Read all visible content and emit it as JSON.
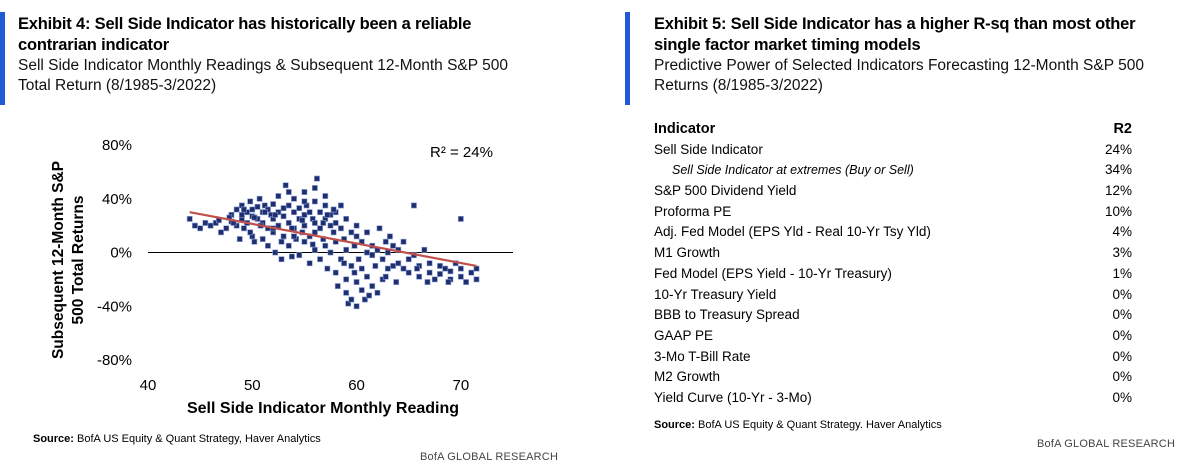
{
  "left": {
    "title": "Exhibit 4: Sell Side Indicator has historically been a reliable contrarian indicator",
    "title_line1": "Exhibit 4: Sell Side Indicator has historically been a reliable",
    "title_line2": "contrarian indicator",
    "subtitle_line1": "Sell Side Indicator Monthly Readings & Subsequent 12-Month S&P 500",
    "subtitle_line2": "Total Return (8/1985-3/2022)",
    "source_label": "Source:",
    "source_text": "BofA US Equity & Quant Strategy, Haver Analytics",
    "brand": "BofA GLOBAL RESEARCH",
    "accent_color": "#1f5bd6"
  },
  "chart_data": {
    "type": "scatter",
    "xlabel": "Sell Side Indicator Monthly Reading",
    "ylabel_line1": "Subsequent 12-Month S&P",
    "ylabel_line2": "500 Total Returns",
    "xlim": [
      40,
      75
    ],
    "ylim": [
      -80,
      80
    ],
    "x_ticks": [
      40,
      50,
      60,
      70
    ],
    "y_ticks": [
      -80,
      -40,
      0,
      40,
      80
    ],
    "y_tick_labels": [
      "-80%",
      "-40%",
      "0%",
      "40%",
      "80%"
    ],
    "annotation": "R² = 24%",
    "marker_color": "#1f2f6e",
    "trendline_color": "#c0504d",
    "trendline": [
      [
        44,
        30
      ],
      [
        71.5,
        -10
      ]
    ],
    "points": [
      [
        44,
        25
      ],
      [
        44.5,
        20
      ],
      [
        45,
        18
      ],
      [
        45.5,
        22
      ],
      [
        46,
        20
      ],
      [
        46.5,
        22
      ],
      [
        47,
        15
      ],
      [
        47.5,
        18
      ],
      [
        48,
        23
      ],
      [
        48,
        28
      ],
      [
        48.5,
        20
      ],
      [
        48.5,
        32
      ],
      [
        49,
        25
      ],
      [
        49,
        35
      ],
      [
        49,
        28
      ],
      [
        49.2,
        18
      ],
      [
        49.5,
        22
      ],
      [
        49.5,
        30
      ],
      [
        49.8,
        38
      ],
      [
        50,
        27
      ],
      [
        50,
        32
      ],
      [
        50,
        12
      ],
      [
        50.2,
        8
      ],
      [
        50.5,
        34
      ],
      [
        50.5,
        25
      ],
      [
        50.7,
        40
      ],
      [
        51,
        30
      ],
      [
        51,
        22
      ],
      [
        51,
        10
      ],
      [
        51.2,
        35
      ],
      [
        51.5,
        32
      ],
      [
        51.5,
        5
      ],
      [
        51.8,
        28
      ],
      [
        52,
        36
      ],
      [
        52,
        25
      ],
      [
        52,
        15
      ],
      [
        52.2,
        0
      ],
      [
        52.5,
        30
      ],
      [
        52.5,
        20
      ],
      [
        52.5,
        42
      ],
      [
        52.8,
        -5
      ],
      [
        53,
        33
      ],
      [
        53,
        27
      ],
      [
        53,
        12
      ],
      [
        53.2,
        50
      ],
      [
        53.5,
        35
      ],
      [
        53.5,
        22
      ],
      [
        53.5,
        5
      ],
      [
        53.8,
        -3
      ],
      [
        54,
        30
      ],
      [
        54,
        18
      ],
      [
        54,
        40
      ],
      [
        54.2,
        10
      ],
      [
        54.5,
        25
      ],
      [
        54.5,
        33
      ],
      [
        54.5,
        -2
      ],
      [
        54.8,
        15
      ],
      [
        55,
        28
      ],
      [
        55,
        45
      ],
      [
        55,
        20
      ],
      [
        55,
        8
      ],
      [
        55.2,
        35
      ],
      [
        55.5,
        30
      ],
      [
        55.5,
        12
      ],
      [
        55.5,
        -8
      ],
      [
        55.8,
        25
      ],
      [
        56,
        38
      ],
      [
        56,
        22
      ],
      [
        56,
        2
      ],
      [
        56,
        15
      ],
      [
        56.2,
        55
      ],
      [
        56.5,
        30
      ],
      [
        56.5,
        18
      ],
      [
        56.5,
        -5
      ],
      [
        56.8,
        10
      ],
      [
        57,
        35
      ],
      [
        57,
        25
      ],
      [
        57,
        5
      ],
      [
        57,
        42
      ],
      [
        57.2,
        -12
      ],
      [
        57.5,
        20
      ],
      [
        57.5,
        28
      ],
      [
        57.5,
        0
      ],
      [
        57.8,
        15
      ],
      [
        58,
        30
      ],
      [
        58,
        -15
      ],
      [
        58,
        8
      ],
      [
        58,
        22
      ],
      [
        58.2,
        -25
      ],
      [
        58.5,
        18
      ],
      [
        58.5,
        -5
      ],
      [
        58.5,
        35
      ],
      [
        58.8,
        10
      ],
      [
        59,
        -20
      ],
      [
        59,
        25
      ],
      [
        59,
        2
      ],
      [
        59,
        -30
      ],
      [
        59.2,
        -38
      ],
      [
        59.5,
        15
      ],
      [
        59.5,
        -10
      ],
      [
        59.5,
        -35
      ],
      [
        59.8,
        5
      ],
      [
        60,
        20
      ],
      [
        60,
        -22
      ],
      [
        60,
        -40
      ],
      [
        60,
        12
      ],
      [
        60.2,
        -5
      ],
      [
        60.5,
        -28
      ],
      [
        60.5,
        8
      ],
      [
        60.8,
        -35
      ],
      [
        61,
        0
      ],
      [
        61,
        -18
      ],
      [
        61,
        15
      ],
      [
        61.2,
        -32
      ],
      [
        61.5,
        5
      ],
      [
        61.5,
        -25
      ],
      [
        61.8,
        -10
      ],
      [
        62,
        2
      ],
      [
        62,
        -30
      ],
      [
        62.2,
        18
      ],
      [
        62.5,
        -5
      ],
      [
        62.5,
        -20
      ],
      [
        62.8,
        8
      ],
      [
        63,
        0
      ],
      [
        63,
        -12
      ],
      [
        63.2,
        12
      ],
      [
        63.5,
        -10
      ],
      [
        63.5,
        5
      ],
      [
        64,
        -8
      ],
      [
        64,
        2
      ],
      [
        64.5,
        -12
      ],
      [
        64.5,
        8
      ],
      [
        65,
        -5
      ],
      [
        65,
        -15
      ],
      [
        65.5,
        -2
      ],
      [
        65.5,
        35
      ],
      [
        66,
        -10
      ],
      [
        66,
        -18
      ],
      [
        66.5,
        2
      ],
      [
        67,
        -15
      ],
      [
        67,
        -8
      ],
      [
        67.5,
        -20
      ],
      [
        68,
        -10
      ],
      [
        68,
        -16
      ],
      [
        68.5,
        -12
      ],
      [
        69,
        -20
      ],
      [
        69,
        -14
      ],
      [
        69.5,
        -8
      ],
      [
        70,
        -18
      ],
      [
        70,
        -12
      ],
      [
        70,
        25
      ],
      [
        70.5,
        -22
      ],
      [
        71,
        -15
      ],
      [
        71.5,
        -20
      ],
      [
        71.5,
        -12
      ],
      [
        52,
        18
      ],
      [
        53.5,
        45
      ],
      [
        55,
        38
      ],
      [
        56,
        48
      ],
      [
        54,
        12
      ],
      [
        52.8,
        8
      ],
      [
        57.8,
        32
      ],
      [
        51.5,
        18
      ],
      [
        50.8,
        20
      ],
      [
        49.8,
        15
      ],
      [
        48.8,
        10
      ],
      [
        47.8,
        26
      ],
      [
        46.8,
        24
      ],
      [
        59.8,
        -15
      ],
      [
        60.5,
        -12
      ],
      [
        61.5,
        -2
      ],
      [
        58.8,
        -8
      ],
      [
        57.2,
        28
      ],
      [
        56.8,
        22
      ],
      [
        55.8,
        6
      ],
      [
        54.8,
        24
      ],
      [
        53.8,
        18
      ],
      [
        52.2,
        28
      ],
      [
        51.2,
        30
      ],
      [
        50.2,
        26
      ],
      [
        49.2,
        32
      ],
      [
        48.2,
        22
      ],
      [
        63.8,
        -22
      ],
      [
        62.8,
        -18
      ],
      [
        65.8,
        -12
      ],
      [
        66.8,
        -22
      ],
      [
        68.8,
        -22
      ]
    ]
  },
  "right": {
    "title_line1": "Exhibit 5: Sell Side Indicator has a higher R-sq than most other",
    "title_line2": "single factor market timing models",
    "subtitle_line1": "Predictive Power of Selected Indicators Forecasting 12-Month S&P 500",
    "subtitle_line2": "Returns (8/1985-3/2022)",
    "source_label": "Source:",
    "source_text": "BofA US Equity & Quant Strategy. Haver Analytics",
    "brand": "BofA GLOBAL RESEARCH",
    "table": {
      "header": {
        "indicator": "Indicator",
        "r2": "R2"
      },
      "rows": [
        {
          "indicator": "Sell Side Indicator",
          "r2": "24%",
          "indent": false
        },
        {
          "indicator": "Sell Side Indicator at extremes (Buy or Sell)",
          "r2": "34%",
          "indent": true
        },
        {
          "indicator": "S&P 500 Dividend Yield",
          "r2": "12%",
          "indent": false
        },
        {
          "indicator": "Proforma PE",
          "r2": "10%",
          "indent": false
        },
        {
          "indicator": "Adj. Fed Model (EPS Yld - Real 10-Yr Tsy Yld)",
          "r2": "4%",
          "indent": false
        },
        {
          "indicator": "M1 Growth",
          "r2": "3%",
          "indent": false
        },
        {
          "indicator": "Fed Model (EPS Yield - 10-Yr Treasury)",
          "r2": "1%",
          "indent": false
        },
        {
          "indicator": "10-Yr Treasury Yield",
          "r2": "0%",
          "indent": false
        },
        {
          "indicator": "BBB to Treasury Spread",
          "r2": "0%",
          "indent": false
        },
        {
          "indicator": "GAAP PE",
          "r2": "0%",
          "indent": false
        },
        {
          "indicator": "3-Mo T-Bill Rate",
          "r2": "0%",
          "indent": false
        },
        {
          "indicator": "M2 Growth",
          "r2": "0%",
          "indent": false
        },
        {
          "indicator": "Yield Curve (10-Yr - 3-Mo)",
          "r2": "0%",
          "indent": false
        }
      ]
    }
  }
}
